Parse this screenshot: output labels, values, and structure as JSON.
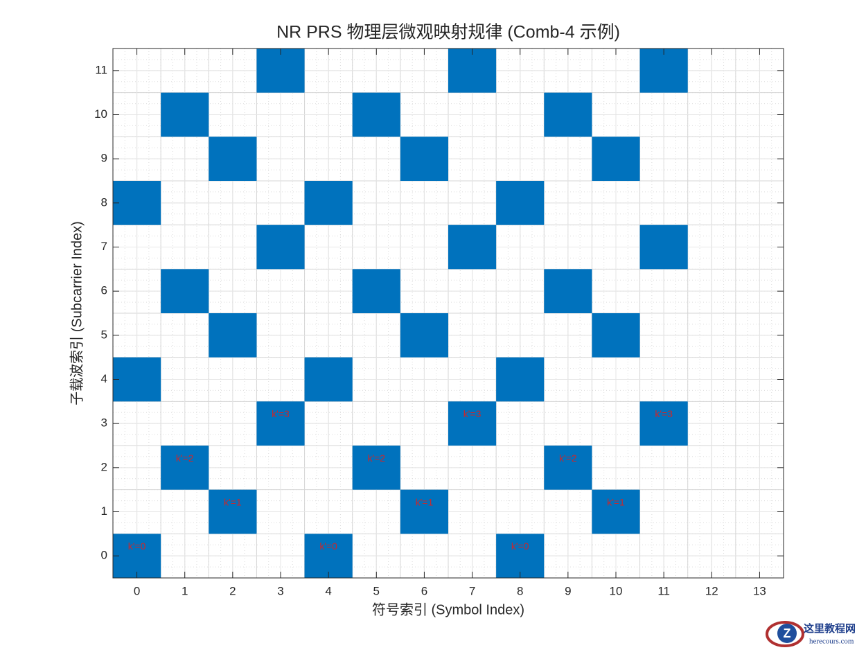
{
  "chart_data": {
    "type": "scatter",
    "marker": "square",
    "color": "#0072BD",
    "title": "NR PRS 物理层微观映射规律 (Comb-4 示例)",
    "xlabel": "符号索引 (Symbol Index)",
    "ylabel": "子载波索引 (Subcarrier Index)",
    "x": [
      0,
      0,
      0,
      1,
      1,
      1,
      2,
      2,
      2,
      3,
      3,
      3,
      4,
      4,
      4,
      5,
      5,
      5,
      6,
      6,
      6,
      7,
      7,
      7,
      8,
      8,
      8,
      9,
      9,
      9,
      10,
      10,
      10,
      11,
      11,
      11
    ],
    "y": [
      0,
      4,
      8,
      2,
      6,
      10,
      1,
      5,
      9,
      3,
      7,
      11,
      0,
      4,
      8,
      2,
      6,
      10,
      1,
      5,
      9,
      3,
      7,
      11,
      0,
      4,
      8,
      2,
      6,
      10,
      1,
      5,
      9,
      3,
      7,
      11
    ],
    "annotations": [
      {
        "text": "k'=0",
        "x": 0,
        "y": 0.2
      },
      {
        "text": "k'=2",
        "x": 1,
        "y": 2.2
      },
      {
        "text": "k'=1",
        "x": 2,
        "y": 1.2
      },
      {
        "text": "k'=3",
        "x": 3,
        "y": 3.2
      },
      {
        "text": "k'=0",
        "x": 4,
        "y": 0.2
      },
      {
        "text": "k'=2",
        "x": 5,
        "y": 2.2
      },
      {
        "text": "k'=1",
        "x": 6,
        "y": 1.2
      },
      {
        "text": "k'=3",
        "x": 7,
        "y": 3.2
      },
      {
        "text": "k'=0",
        "x": 8,
        "y": 0.2
      },
      {
        "text": "k'=2",
        "x": 9,
        "y": 2.2
      },
      {
        "text": "k'=1",
        "x": 10,
        "y": 1.2
      },
      {
        "text": "k'=3",
        "x": 11,
        "y": 3.2
      }
    ],
    "annotation_color": "#C8282D",
    "xlim": [
      -0.5,
      13.5
    ],
    "xticks": [
      0,
      1,
      2,
      3,
      4,
      5,
      6,
      7,
      8,
      9,
      10,
      11,
      12,
      13
    ],
    "ylim": [
      -0.5,
      11.5
    ],
    "yticks": [
      0,
      1,
      2,
      3,
      4,
      5,
      6,
      7,
      8,
      9,
      10,
      11
    ],
    "grid": true,
    "minor_grid": true
  },
  "watermark": {
    "name": "这里教程网",
    "url": "herecours.com"
  }
}
